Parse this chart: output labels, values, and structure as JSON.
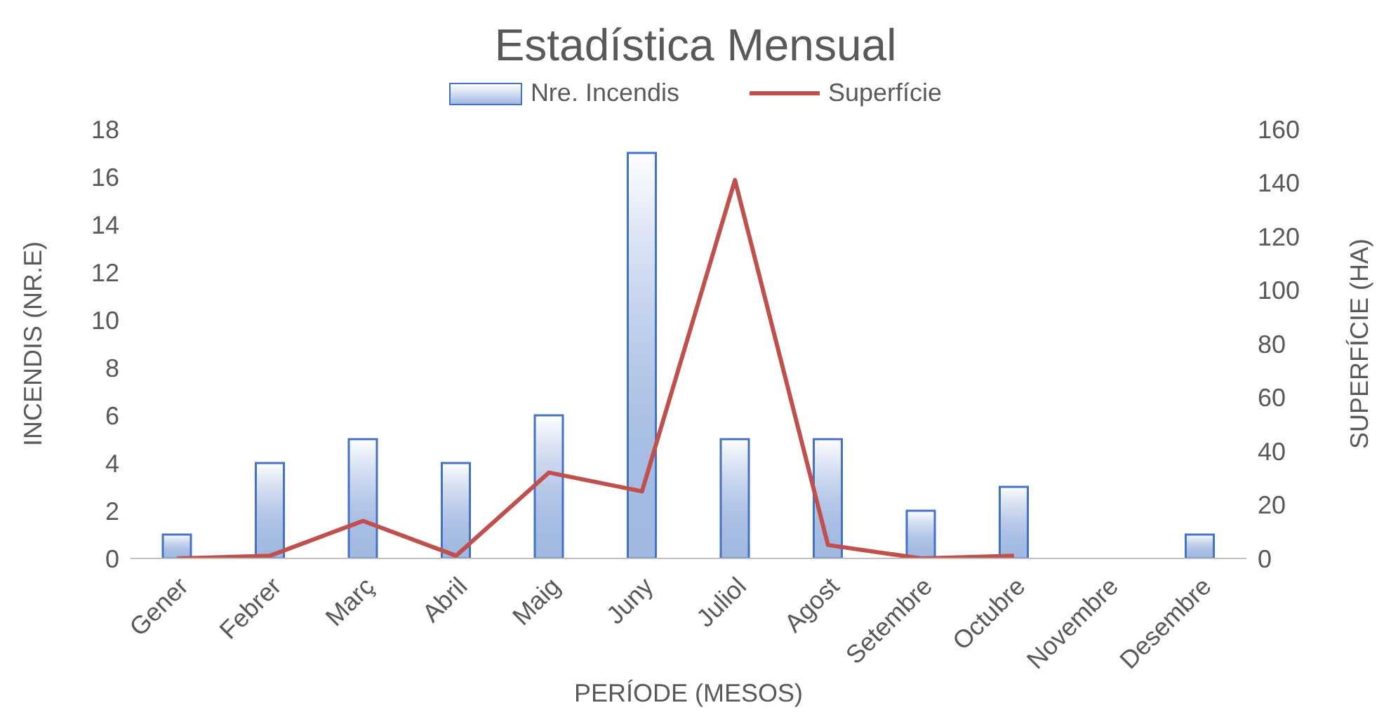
{
  "chart_data": {
    "type": "bar",
    "title": "Estadística Mensual",
    "xlabel": "PERÍODE (MESOS)",
    "ylabel": "INCENDIS (NR.E)",
    "y2label": "SUPERFÍCIE (HA)",
    "categories": [
      "Gener",
      "Febrer",
      "Març",
      "Abril",
      "Maig",
      "Juny",
      "Juliol",
      "Agost",
      "Setembre",
      "Octubre",
      "Novembre",
      "Desembre"
    ],
    "series": [
      {
        "name": "Nre. Incendis",
        "color": "#4472c4",
        "values": [
          1,
          4,
          5,
          4,
          6,
          17,
          5,
          5,
          2,
          3,
          null,
          1
        ]
      },
      {
        "name": "Superfície",
        "type": "line",
        "axis": "y2",
        "color": "#c0504d",
        "values": [
          0,
          1,
          14,
          1,
          32,
          25,
          141,
          5,
          0,
          1,
          null,
          null
        ]
      }
    ],
    "ylim": [
      0,
      18
    ],
    "yticks": [
      0,
      2,
      4,
      6,
      8,
      10,
      12,
      14,
      16,
      18
    ],
    "y2lim": [
      0,
      160
    ],
    "y2ticks": [
      0,
      20,
      40,
      60,
      80,
      100,
      120,
      140,
      160
    ],
    "grid": false,
    "legend": "top",
    "marker": "none",
    "line_style": "solid"
  }
}
